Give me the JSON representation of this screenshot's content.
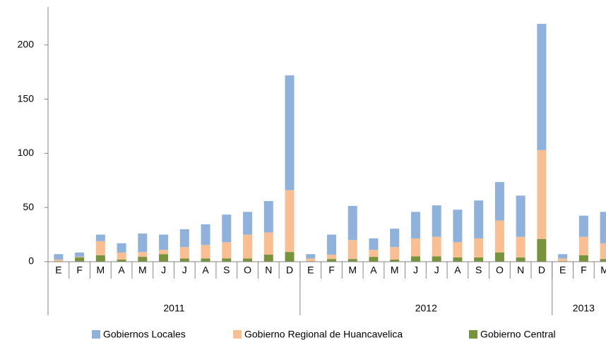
{
  "chart_data": {
    "type": "stacked_bar",
    "categories": [
      "E",
      "F",
      "M",
      "A",
      "M",
      "J",
      "J",
      "A",
      "S",
      "O",
      "N",
      "D",
      "E",
      "F",
      "M",
      "A",
      "M",
      "J",
      "J",
      "A",
      "S",
      "O",
      "N",
      "D",
      "E",
      "F",
      "M"
    ],
    "category_groups": [
      {
        "label": "2011",
        "count": 12
      },
      {
        "label": "2012",
        "count": 12
      },
      {
        "label": "2013",
        "count": 3
      }
    ],
    "series": [
      {
        "name": "Gobiernos Locales",
        "color": "#8fb2dd",
        "values": [
          5,
          4,
          6,
          8.5,
          17,
          14,
          16.5,
          19,
          25.5,
          21,
          29,
          106,
          4,
          18.5,
          31.5,
          10.5,
          17,
          24.5,
          29,
          30,
          35,
          35.5,
          38,
          116.5,
          4,
          19.5,
          29
        ]
      },
      {
        "name": "Gobierno Regional de Huancavelica",
        "color": "#f9bf92",
        "values": [
          1.5,
          0.5,
          13,
          6.5,
          4.5,
          4,
          10.5,
          12.5,
          15,
          22,
          20.5,
          57,
          2.5,
          4,
          17.5,
          6.5,
          11.5,
          16.5,
          18,
          14,
          17.5,
          29.5,
          19,
          82,
          2.5,
          17,
          14.5
        ]
      },
      {
        "name": "Gobierno Central",
        "color": "#77933c",
        "values": [
          0.5,
          4,
          6,
          2,
          4.5,
          7,
          3,
          3,
          3,
          3,
          6.5,
          9,
          0.5,
          2.5,
          2.5,
          4.5,
          2,
          5,
          5,
          4,
          4,
          8.5,
          4,
          21,
          0.5,
          6,
          2.5
        ]
      }
    ],
    "ylim": [
      0,
      235
    ],
    "yticks": [
      0,
      50,
      100,
      150,
      200
    ]
  }
}
